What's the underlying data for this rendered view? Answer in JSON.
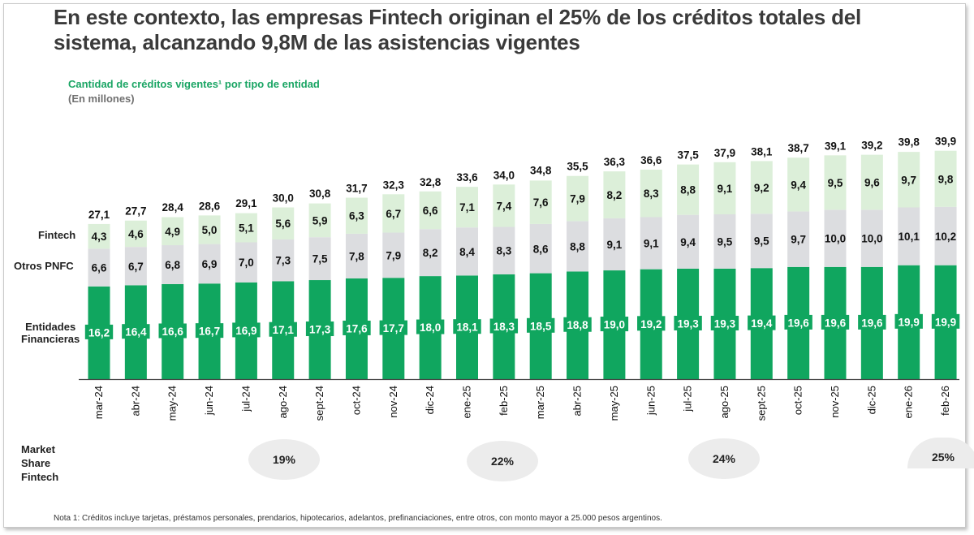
{
  "title": "En este contexto, las empresas Fintech originan el 25% de los créditos totales del sistema, alcanzando 9,8M de las asistencias vigentes",
  "chart_data": {
    "type": "bar",
    "stacked": true,
    "title": "Cantidad de créditos vigentes¹ por tipo de entidad",
    "subtitle": "(En millones)",
    "categories": [
      "mar-24",
      "abr-24",
      "may-24",
      "jun-24",
      "jul-24",
      "ago-24",
      "sept-24",
      "oct-24",
      "nov-24",
      "dic-24",
      "ene-25",
      "feb-25",
      "mar-25",
      "abr-25",
      "may-25",
      "jun-25",
      "jul-25",
      "ago-25",
      "sept-25",
      "oct-25",
      "nov-25",
      "dic-25",
      "ene-26",
      "feb-26"
    ],
    "series": [
      {
        "name": "Entidades Financieras",
        "color": "#10a65f",
        "values": [
          16.2,
          16.4,
          16.6,
          16.7,
          16.9,
          17.1,
          17.3,
          17.6,
          17.7,
          18.0,
          18.1,
          18.3,
          18.5,
          18.8,
          19.0,
          19.2,
          19.3,
          19.3,
          19.4,
          19.6,
          19.6,
          19.6,
          19.9,
          19.9
        ],
        "labels": [
          "16,2",
          "16,4",
          "16,6",
          "16,7",
          "16,9",
          "17,1",
          "17,3",
          "17,6",
          "17,7",
          "18,0",
          "18,1",
          "18,3",
          "18,5",
          "18,8",
          "19,0",
          "19,2",
          "19,3",
          "19,3",
          "19,4",
          "19,6",
          "19,6",
          "19,6",
          "19,9",
          "19,9"
        ]
      },
      {
        "name": "Otros PNFC",
        "color": "#dcdde0",
        "values": [
          6.6,
          6.7,
          6.8,
          6.9,
          7.0,
          7.3,
          7.5,
          7.8,
          7.9,
          8.2,
          8.4,
          8.3,
          8.6,
          8.8,
          9.1,
          9.1,
          9.4,
          9.5,
          9.5,
          9.7,
          10.0,
          10.0,
          10.1,
          10.2
        ],
        "labels": [
          "6,6",
          "6,7",
          "6,8",
          "6,9",
          "7,0",
          "7,3",
          "7,5",
          "7,8",
          "7,9",
          "8,2",
          "8,4",
          "8,3",
          "8,6",
          "8,8",
          "9,1",
          "9,1",
          "9,4",
          "9,5",
          "9,5",
          "9,7",
          "10,0",
          "10,0",
          "10,1",
          "10,2"
        ]
      },
      {
        "name": "Fintech",
        "color": "#dcefd9",
        "values": [
          4.3,
          4.6,
          4.9,
          5.0,
          5.1,
          5.6,
          5.9,
          6.3,
          6.7,
          6.6,
          7.1,
          7.4,
          7.6,
          7.9,
          8.2,
          8.3,
          8.8,
          9.1,
          9.2,
          9.4,
          9.5,
          9.6,
          9.7,
          9.8
        ],
        "labels": [
          "4,3",
          "4,6",
          "4,9",
          "5,0",
          "5,1",
          "5,6",
          "5,9",
          "6,3",
          "6,7",
          "6,6",
          "7,1",
          "7,4",
          "7,6",
          "7,9",
          "8,2",
          "8,3",
          "8,8",
          "9,1",
          "9,2",
          "9,4",
          "9,5",
          "9,6",
          "9,7",
          "9,8"
        ]
      }
    ],
    "totals": [
      27.1,
      27.7,
      28.4,
      28.6,
      29.1,
      30.0,
      30.8,
      31.7,
      32.3,
      32.8,
      33.6,
      34.0,
      34.8,
      35.5,
      36.3,
      36.6,
      37.5,
      37.9,
      38.1,
      38.7,
      39.1,
      39.2,
      39.8,
      39.9
    ],
    "total_labels": [
      "27,1",
      "27,7",
      "28,4",
      "28,6",
      "29,1",
      "30,0",
      "30,8",
      "31,7",
      "32,3",
      "32,8",
      "33,6",
      "34,0",
      "34,8",
      "35,5",
      "36,3",
      "36,6",
      "37,5",
      "37,9",
      "38,1",
      "38,7",
      "39,1",
      "39,2",
      "39,8",
      "39,9"
    ],
    "ylim": [
      0,
      41
    ],
    "grid": false,
    "legend": "left row labels"
  },
  "row_labels": {
    "fintech": "Fintech",
    "otros": "Otros PNFC",
    "entidades_line1": "Entidades",
    "entidades_line2": "Financieras"
  },
  "market_share": {
    "label_line1": "Market",
    "label_line2": "Share",
    "label_line3": "Fintech",
    "values": [
      "19%",
      "22%",
      "24%",
      "25%"
    ]
  },
  "note": "Nota 1: Créditos incluye tarjetas, préstamos personales, prendarios, hipotecarios, adelantos, prefinanciaciones, entre otros, con monto mayor a 25.000 pesos argentinos."
}
